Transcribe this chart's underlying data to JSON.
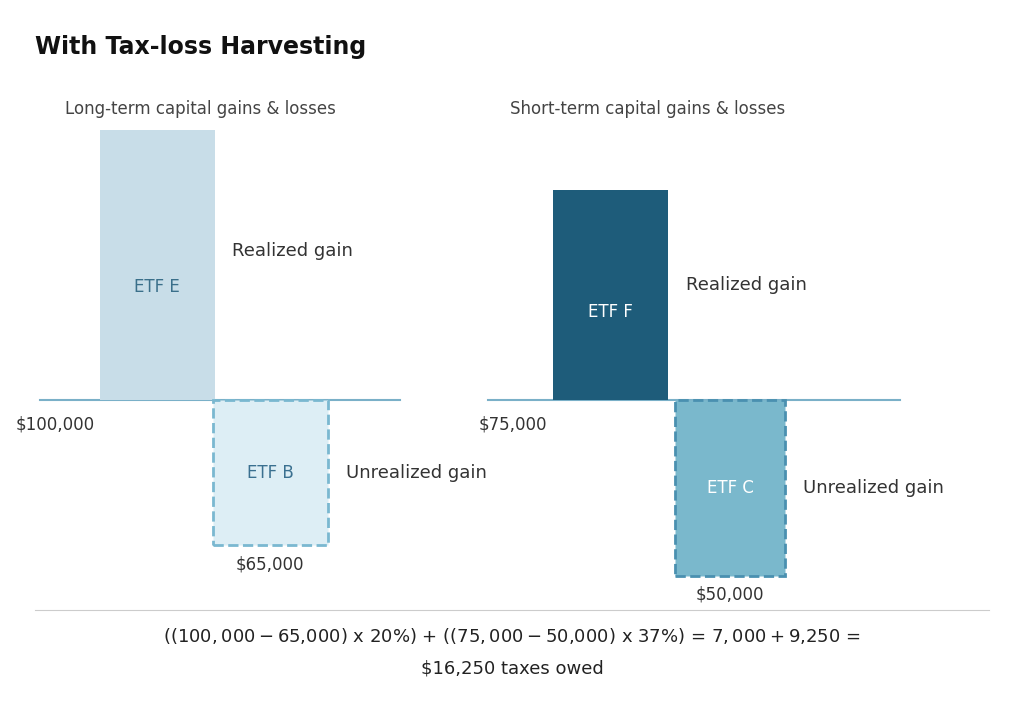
{
  "title": "With Tax-loss Harvesting",
  "background_color": "#ffffff",
  "left_section_title": "Long-term capital gains & losses",
  "right_section_title": "Short-term capital gains & losses",
  "left_gain_bar": {
    "label": "ETF E",
    "color": "#c8dde8",
    "label_color": "#3a6f8a",
    "value_label": "$100,000",
    "annotation": "Realized gain"
  },
  "left_loss_bar": {
    "label": "ETF B",
    "color": "#b0d0e0",
    "edge_color": "#7ab8d0",
    "fill_color": "#ddeef5",
    "label_color": "#3a7090",
    "value_label": "$65,000",
    "annotation": "Unrealized gain",
    "dashed": true
  },
  "right_gain_bar": {
    "label": "ETF F",
    "color": "#1e5c7a",
    "label_color": "#ffffff",
    "value_label": "$75,000",
    "annotation": "Realized gain"
  },
  "right_loss_bar": {
    "label": "ETF C",
    "color": "#6aafc8",
    "edge_color": "#4a90b0",
    "fill_color": "#7ab8cc",
    "label_color": "#ffffff",
    "value_label": "$50,000",
    "annotation": "Unrealized gain",
    "dashed": true
  },
  "formula_line1": "(($100,000 - $65,000) x 20%) + (($75,000 - $50,000) x 37%) = $7,000 + $9,250 =",
  "formula_line2": "$16,250 taxes owed",
  "baseline_color": "#7ab0c8",
  "title_fontsize": 17,
  "section_title_fontsize": 12,
  "bar_label_fontsize": 12,
  "annotation_fontsize": 13,
  "value_fontsize": 12,
  "formula_fontsize": 13
}
